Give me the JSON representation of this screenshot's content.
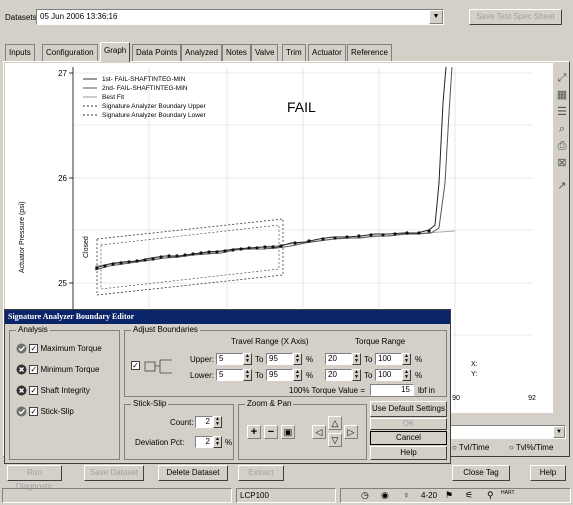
{
  "dataset": {
    "label": "Datasets:",
    "value": "05 Jun 2006 13:36:16",
    "save_spec_label": "Save Test Spec Sheet"
  },
  "tabs": [
    "Inputs",
    "Configuration",
    "Graph",
    "Data Points",
    "Analyzed",
    "Notes",
    "Valve",
    "Trim",
    "Actuator",
    "Reference"
  ],
  "active_tab": "Graph",
  "chart_data": {
    "type": "line",
    "ylabel": "Actuator Pressure (psi)",
    "annotation": "FAIL",
    "closed_label": "Closed",
    "y_ticks": [
      "27",
      "26",
      "25"
    ],
    "x_ticks": [
      "90",
      "92"
    ],
    "legend": [
      "1st- FAIL-SHAFTINTEG-MIN",
      "2nd- FAIL-SHAFTINTEG-MIN",
      "Best Fit",
      "Signature Analyzer Boundary Upper",
      "Signature Analyzer Boundary Lower"
    ],
    "cursor_x_label": "X:",
    "cursor_y_label": "Y:"
  },
  "dialog": {
    "title": "Signature Analyzer Boundary Editor",
    "analysis": {
      "label": "Analysis",
      "items": [
        {
          "label": "Maximum Torque",
          "status": "pass"
        },
        {
          "label": "Minimum Torque",
          "status": "fail"
        },
        {
          "label": "Shaft Integrity",
          "status": "fail"
        },
        {
          "label": "Stick-Slip",
          "status": "pass"
        }
      ]
    },
    "adjust": {
      "label": "Adjust Boundaries",
      "travel_label": "Travel Range (X Axis)",
      "torque_label": "Torque Range",
      "upper_label": "Upper:",
      "lower_label": "Lower:",
      "to": "To",
      "pct": "%",
      "upper": {
        "travel_from": "5",
        "travel_to": "95",
        "torque_from": "20",
        "torque_to": "100"
      },
      "lower": {
        "travel_from": "5",
        "travel_to": "95",
        "torque_from": "20",
        "torque_to": "100"
      },
      "torque_value_label": "100% Torque Value =",
      "torque_value": "15",
      "torque_unit": "lbf in"
    },
    "stick_slip": {
      "label": "Stick-Slip",
      "count_label": "Count:",
      "count": "2",
      "deviation_label": "Deviation Pct:",
      "deviation": "2",
      "pct": "%"
    },
    "zoom_pan": {
      "label": "Zoom & Pan"
    },
    "buttons": {
      "defaults": "Use Default Settings",
      "ok": "OK",
      "cancel": "Cancel",
      "help": "Help"
    }
  },
  "radio": {
    "tvl": "Tvl/Time",
    "tvl_pct": "Tvl%/Time"
  },
  "bottom_buttons": {
    "run": "Run Diagnostic",
    "save": "Save Dataset",
    "delete": "Delete Dataset",
    "extract": "Extract",
    "close_tag": "Close Tag",
    "help": "Help"
  },
  "status": {
    "device": "LCP100",
    "current": "4-20",
    "hart": "HART"
  }
}
